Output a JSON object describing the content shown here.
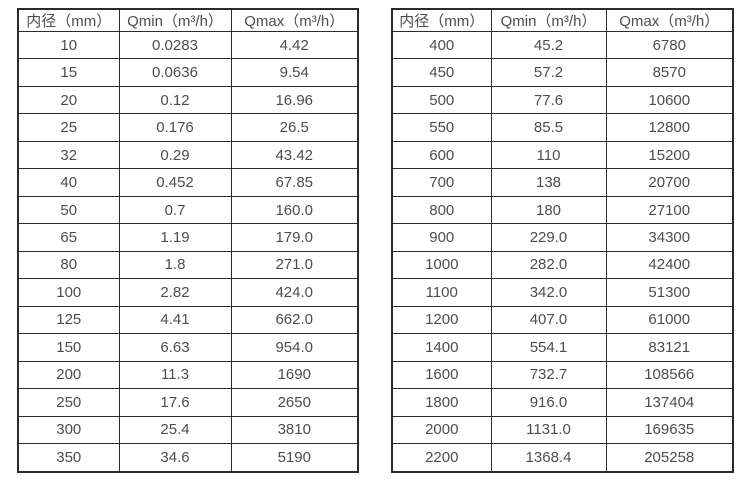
{
  "colors": {
    "border": "#2b2b2b",
    "text": "#4d4d4d",
    "background": "#ffffff"
  },
  "tables": [
    {
      "id": "left",
      "headers": [
        "内径（mm）",
        "Qmin（m³/h）",
        "Qmax（m³/h）"
      ],
      "rows": [
        [
          "10",
          "0.0283",
          "4.42"
        ],
        [
          "15",
          "0.0636",
          "9.54"
        ],
        [
          "20",
          "0.12",
          "16.96"
        ],
        [
          "25",
          "0.176",
          "26.5"
        ],
        [
          "32",
          "0.29",
          "43.42"
        ],
        [
          "40",
          "0.452",
          "67.85"
        ],
        [
          "50",
          "0.7",
          "160.0"
        ],
        [
          "65",
          "1.19",
          "179.0"
        ],
        [
          "80",
          "1.8",
          "271.0"
        ],
        [
          "100",
          "2.82",
          "424.0"
        ],
        [
          "125",
          "4.41",
          "662.0"
        ],
        [
          "150",
          "6.63",
          "954.0"
        ],
        [
          "200",
          "11.3",
          "1690"
        ],
        [
          "250",
          "17.6",
          "2650"
        ],
        [
          "300",
          "25.4",
          "3810"
        ],
        [
          "350",
          "34.6",
          "5190"
        ]
      ]
    },
    {
      "id": "right",
      "headers": [
        "内径（mm）",
        "Qmin（m³/h）",
        "Qmax（m³/h）"
      ],
      "rows": [
        [
          "400",
          "45.2",
          "6780"
        ],
        [
          "450",
          "57.2",
          "8570"
        ],
        [
          "500",
          "77.6",
          "10600"
        ],
        [
          "550",
          "85.5",
          "12800"
        ],
        [
          "600",
          "110",
          "15200"
        ],
        [
          "700",
          "138",
          "20700"
        ],
        [
          "800",
          "180",
          "27100"
        ],
        [
          "900",
          "229.0",
          "34300"
        ],
        [
          "1000",
          "282.0",
          "42400"
        ],
        [
          "1100",
          "342.0",
          "51300"
        ],
        [
          "1200",
          "407.0",
          "61000"
        ],
        [
          "1400",
          "554.1",
          "83121"
        ],
        [
          "1600",
          "732.7",
          "108566"
        ],
        [
          "1800",
          "916.0",
          "137404"
        ],
        [
          "2000",
          "1131.0",
          "169635"
        ],
        [
          "2200",
          "1368.4",
          "205258"
        ]
      ]
    }
  ]
}
